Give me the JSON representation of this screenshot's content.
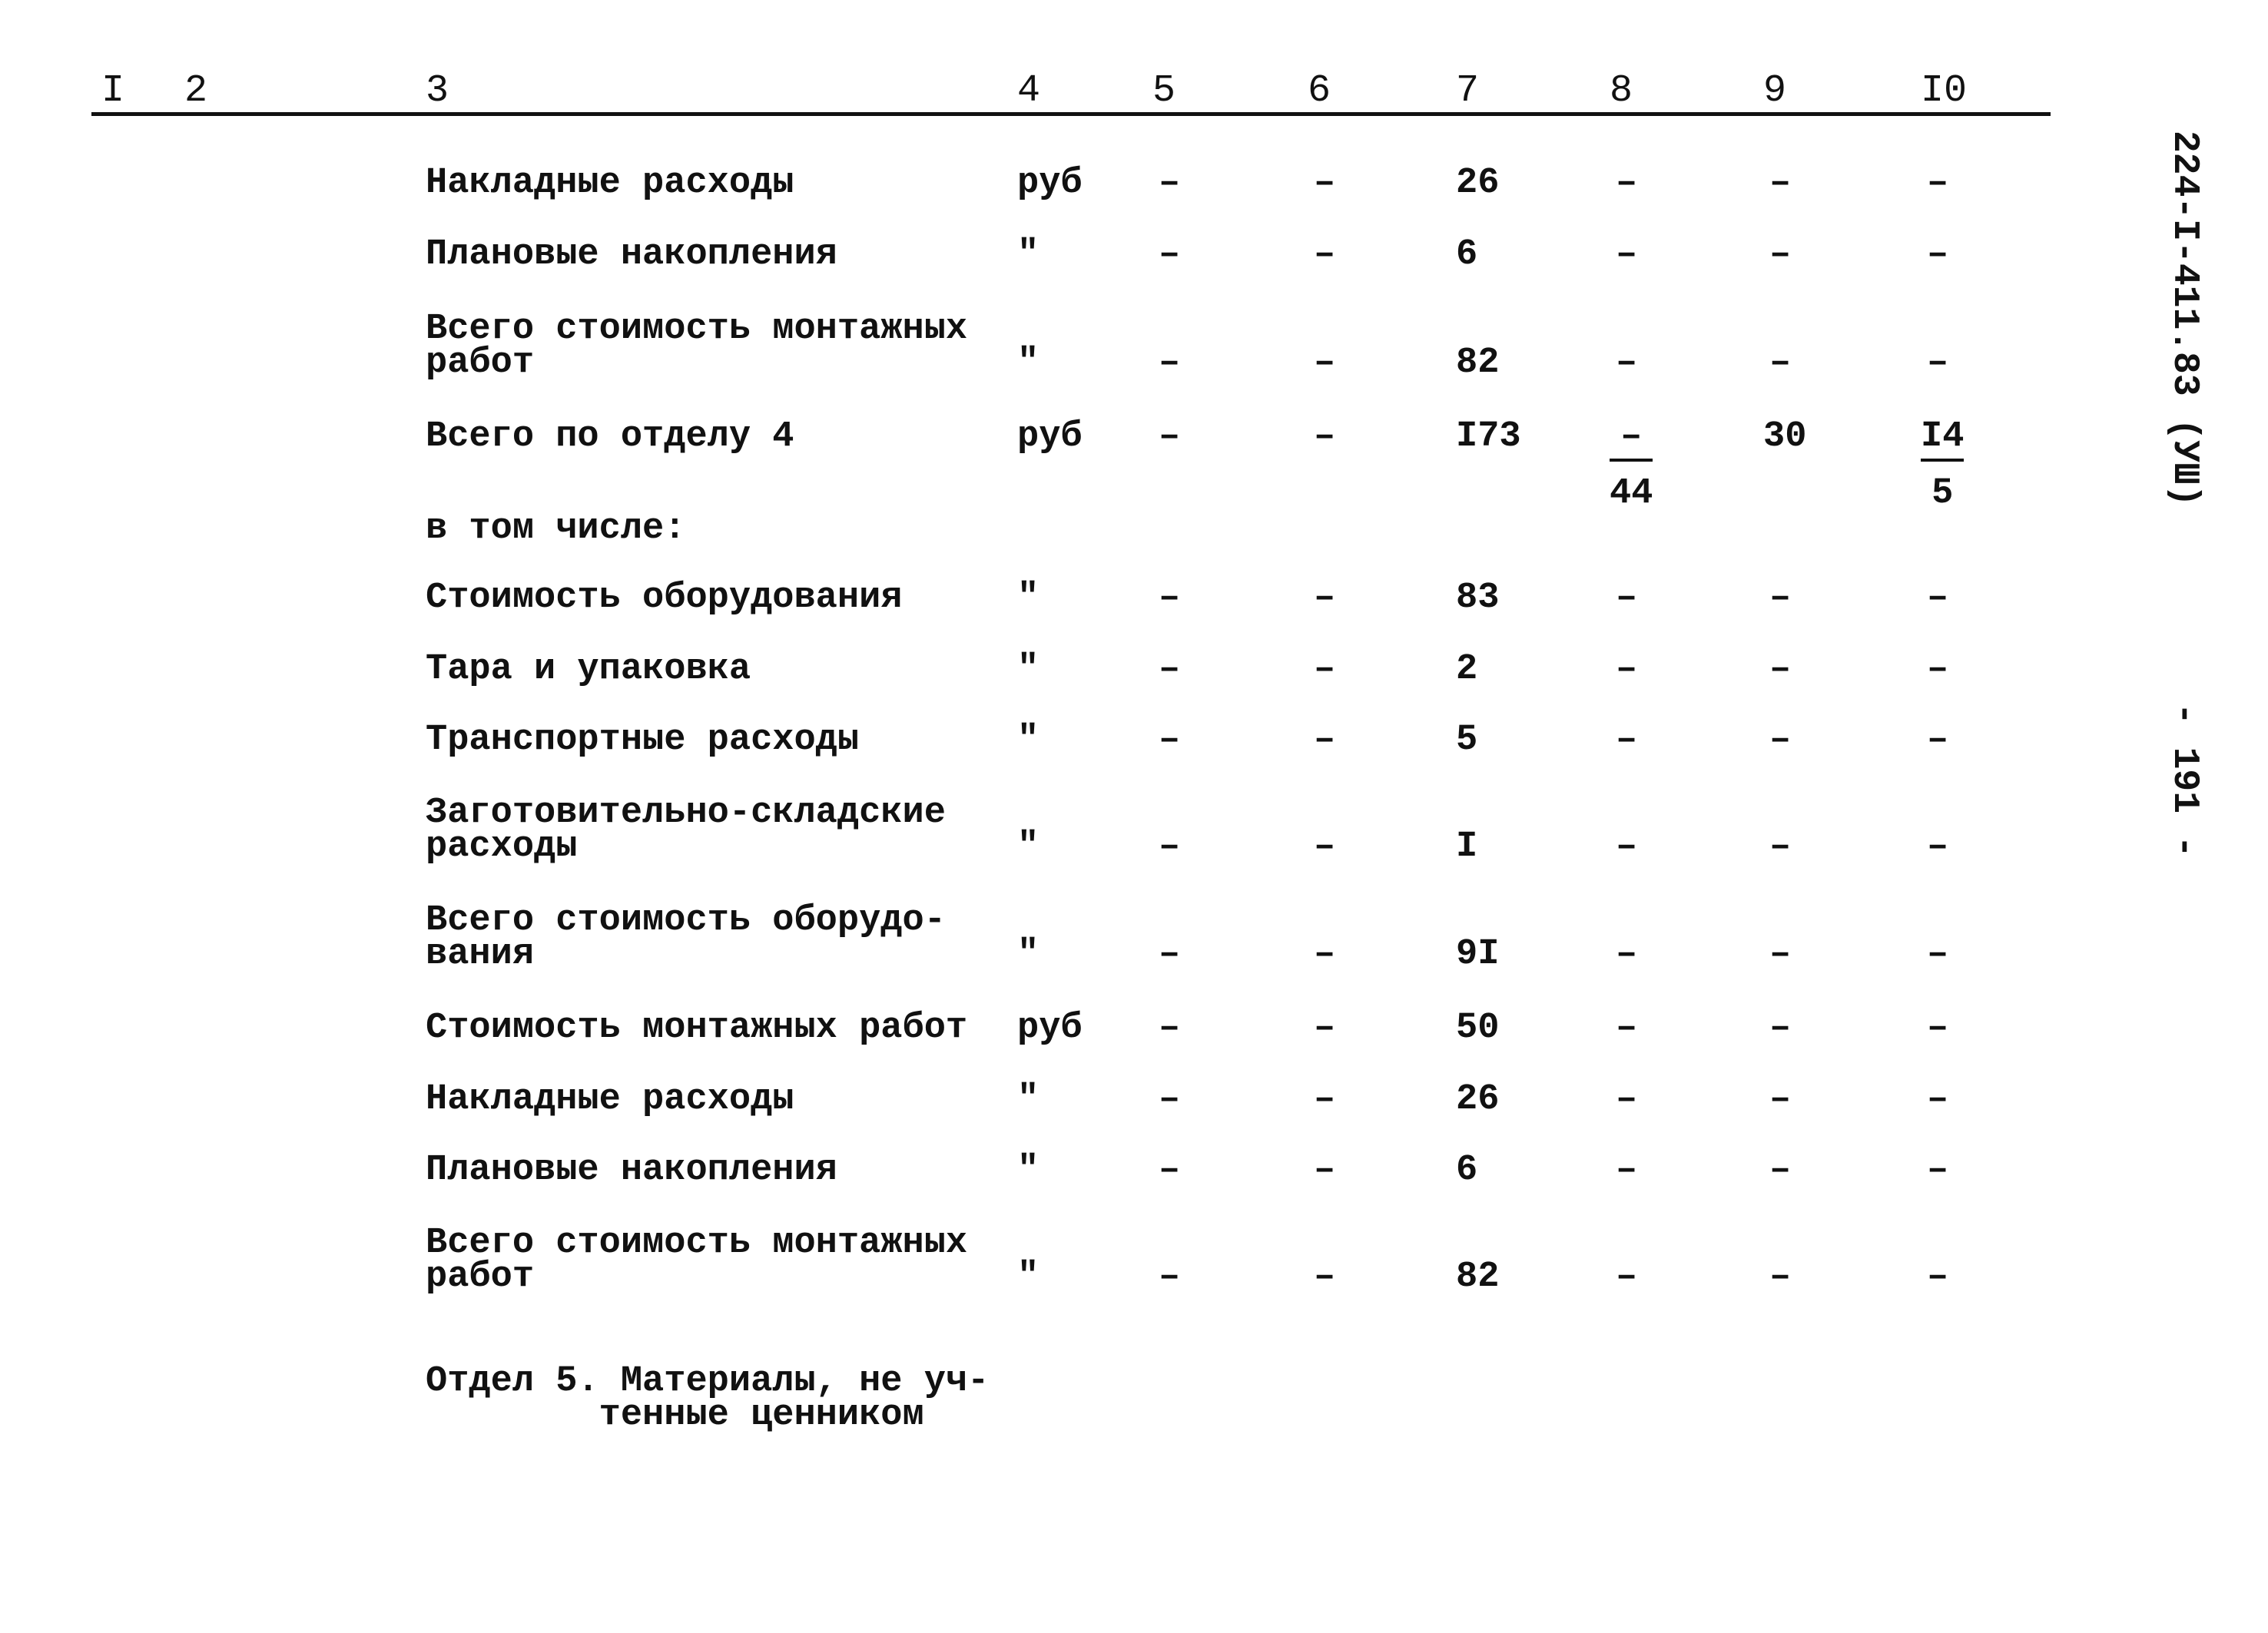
{
  "column_headers": [
    "I",
    "2",
    "3",
    "4",
    "5",
    "6",
    "7",
    "8",
    "9",
    "I0"
  ],
  "side_labels": {
    "document_code": "224-I-411.83 (УШ)",
    "page_number": "- 191 -"
  },
  "rows": [
    {
      "name": [
        "Накладные расходы"
      ],
      "unit": "руб",
      "c5": "–",
      "c6": "–",
      "c7": "26",
      "c8": "–",
      "c9": "–",
      "c10": "–"
    },
    {
      "name": [
        "Плановые накопления"
      ],
      "unit": "\"",
      "c5": "–",
      "c6": "–",
      "c7": "6",
      "c8": "–",
      "c9": "–",
      "c10": "–"
    },
    {
      "name": [
        "Всего стоимость монтажных",
        "работ"
      ],
      "unit": "\"",
      "c5": "–",
      "c6": "–",
      "c7": "82",
      "c8": "–",
      "c9": "–",
      "c10": "–"
    },
    {
      "name": [
        "Всего по отделу 4"
      ],
      "unit": "руб",
      "c5": "–",
      "c6": "–",
      "c7": "I73",
      "c8": {
        "top": "–",
        "bottom": "44"
      },
      "c9": "30",
      "c10": {
        "top": "I4",
        "bottom": "5"
      }
    },
    {
      "name": [
        "в том числе:"
      ]
    },
    {
      "name": [
        "Стоимость оборудования"
      ],
      "unit": "\"",
      "c5": "–",
      "c6": "–",
      "c7": "83",
      "c8": "–",
      "c9": "–",
      "c10": "–"
    },
    {
      "name": [
        "Тара и упаковка"
      ],
      "unit": "\"",
      "c5": "–",
      "c6": "–",
      "c7": "2",
      "c8": "–",
      "c9": "–",
      "c10": "–"
    },
    {
      "name": [
        "Транспортные расходы"
      ],
      "unit": "\"",
      "c5": "–",
      "c6": "–",
      "c7": "5",
      "c8": "–",
      "c9": "–",
      "c10": "–"
    },
    {
      "name": [
        "Заготовительно-складские",
        "расходы"
      ],
      "unit": "\"",
      "c5": "–",
      "c6": "–",
      "c7": "I",
      "c8": "–",
      "c9": "–",
      "c10": "–"
    },
    {
      "name": [
        "Всего стоимость оборудо-",
        "вания"
      ],
      "unit": "\"",
      "c5": "–",
      "c6": "–",
      "c7": "9I",
      "c8": "–",
      "c9": "–",
      "c10": "–"
    },
    {
      "name": [
        "Стоимость монтажных работ"
      ],
      "unit": "руб",
      "c5": "–",
      "c6": "–",
      "c7": "50",
      "c8": "–",
      "c9": "–",
      "c10": "–"
    },
    {
      "name": [
        "Накладные расходы"
      ],
      "unit": "\"",
      "c5": "–",
      "c6": "–",
      "c7": "26",
      "c8": "–",
      "c9": "–",
      "c10": "–"
    },
    {
      "name": [
        "Плановые накопления"
      ],
      "unit": "\"",
      "c5": "–",
      "c6": "–",
      "c7": "6",
      "c8": "–",
      "c9": "–",
      "c10": "–"
    },
    {
      "name": [
        "Всего стоимость монтажных",
        "работ"
      ],
      "unit": "\"",
      "c5": "–",
      "c6": "–",
      "c7": "82",
      "c8": "–",
      "c9": "–",
      "c10": "–"
    },
    {
      "name": [
        "Отдел 5. Материалы, не уч-",
        "        тенные ценником"
      ]
    }
  ]
}
